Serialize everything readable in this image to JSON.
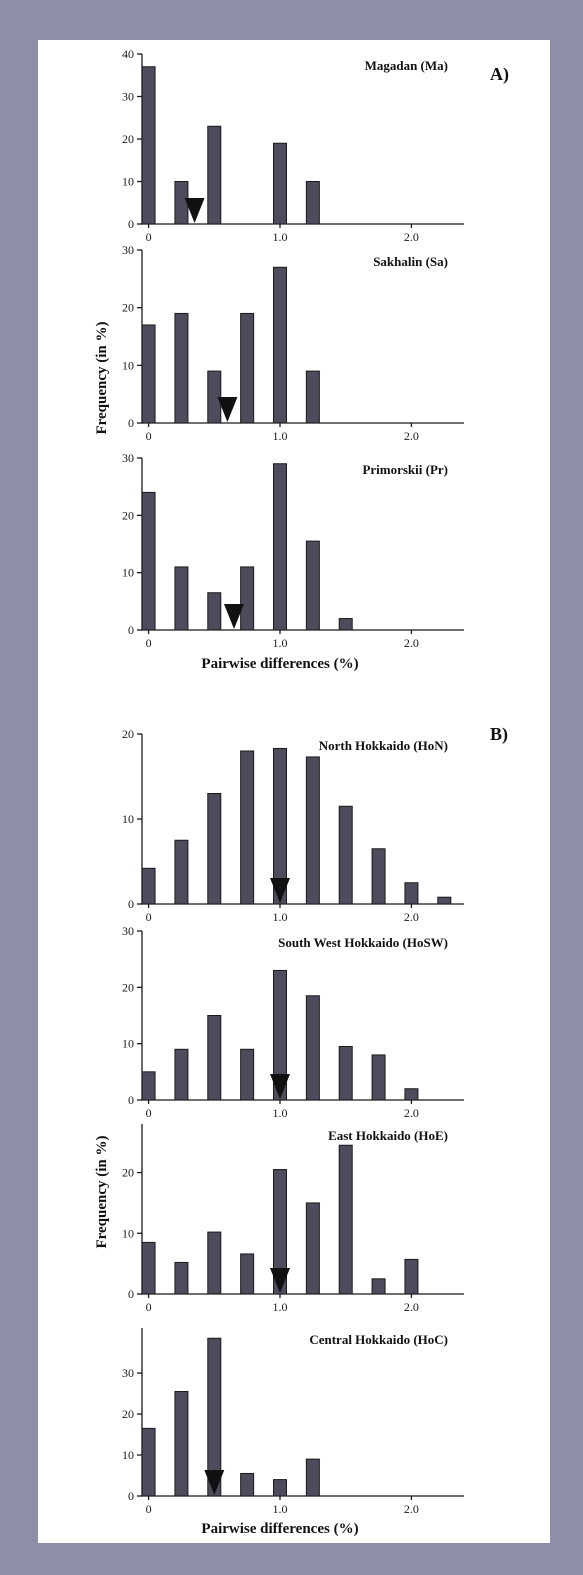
{
  "sections": [
    {
      "label": "A)",
      "ylabel": "Frequency (in %)",
      "xlabel": "Pairwise differences (%)"
    },
    {
      "label": "B)",
      "ylabel": "Frequency (in %)",
      "xlabel": "Pairwise differences (%)"
    }
  ],
  "colors": {
    "bar": "#4e4c5c",
    "frame": "#8f8ea8",
    "marker": "#111111"
  },
  "chart_data": [
    {
      "type": "bar",
      "title": "Magadan (Ma)",
      "x": [
        0,
        0.25,
        0.5,
        1.0,
        1.25
      ],
      "values": [
        37,
        10,
        23,
        19,
        10
      ],
      "mean_marker": 0.35,
      "xlim": [
        -0.05,
        2.4
      ],
      "ylim": [
        0,
        40
      ],
      "yticks": [
        "0",
        "10",
        "20",
        "30",
        "40"
      ],
      "xticks": [
        "0",
        "1.0",
        "2.0"
      ]
    },
    {
      "type": "bar",
      "title": "Sakhalin (Sa)",
      "x": [
        0,
        0.25,
        0.5,
        0.75,
        1.0,
        1.25
      ],
      "values": [
        17,
        19,
        9,
        19,
        27,
        9
      ],
      "mean_marker": 0.6,
      "xlim": [
        -0.05,
        2.4
      ],
      "ylim": [
        0,
        30
      ],
      "yticks": [
        "0",
        "10",
        "20",
        "30"
      ],
      "xticks": [
        "0",
        "1.0",
        "2.0"
      ]
    },
    {
      "type": "bar",
      "title": "Primorskii (Pr)",
      "x": [
        0,
        0.25,
        0.5,
        0.75,
        1.0,
        1.25,
        1.5
      ],
      "values": [
        24,
        11,
        6.5,
        11,
        29,
        15.5,
        2
      ],
      "mean_marker": 0.65,
      "xlim": [
        -0.05,
        2.4
      ],
      "ylim": [
        0,
        30
      ],
      "yticks": [
        "0",
        "10",
        "20",
        "30"
      ],
      "xticks": [
        "0",
        "1.0",
        "2.0"
      ]
    },
    {
      "type": "bar",
      "title": "North Hokkaido (HoN)",
      "x": [
        0,
        0.25,
        0.5,
        0.75,
        1.0,
        1.25,
        1.5,
        1.75,
        2.0,
        2.25
      ],
      "values": [
        4.2,
        7.5,
        13,
        18,
        18.3,
        17.3,
        11.5,
        6.5,
        2.5,
        0.8
      ],
      "mean_marker": 1.0,
      "xlim": [
        -0.05,
        2.4
      ],
      "ylim": [
        0,
        20
      ],
      "yticks": [
        "0",
        "10",
        "20"
      ],
      "xticks": [
        "0",
        "1.0",
        "2.0"
      ]
    },
    {
      "type": "bar",
      "title": "South West Hokkaido (HoSW)",
      "x": [
        0,
        0.25,
        0.5,
        0.75,
        1.0,
        1.25,
        1.5,
        1.75,
        2.0
      ],
      "values": [
        5,
        9,
        15,
        9,
        23,
        18.5,
        9.5,
        8,
        2
      ],
      "mean_marker": 1.0,
      "xlim": [
        -0.05,
        2.4
      ],
      "ylim": [
        0,
        30
      ],
      "yticks": [
        "0",
        "10",
        "20",
        "30"
      ],
      "xticks": [
        "0",
        "1.0",
        "2.0"
      ]
    },
    {
      "type": "bar",
      "title": "East Hokkaido (HoE)",
      "x": [
        0,
        0.25,
        0.5,
        0.75,
        1.0,
        1.25,
        1.5,
        1.75,
        2.0
      ],
      "values": [
        8.5,
        5.2,
        10.2,
        6.6,
        20.5,
        15,
        24.5,
        2.5,
        5.7
      ],
      "mean_marker": 1.0,
      "xlim": [
        -0.05,
        2.4
      ],
      "ylim": [
        0,
        28
      ],
      "yticks": [
        "0",
        "10",
        "20"
      ],
      "xticks": [
        "0",
        "1.0",
        "2.0"
      ]
    },
    {
      "type": "bar",
      "title": "Central Hokkaido (HoC)",
      "x": [
        0,
        0.25,
        0.5,
        0.75,
        1.0,
        1.25
      ],
      "values": [
        16.5,
        25.5,
        38.5,
        5.5,
        4,
        9
      ],
      "mean_marker": 0.5,
      "xlim": [
        -0.05,
        2.4
      ],
      "ylim": [
        0,
        41
      ],
      "yticks": [
        "0",
        "10",
        "20",
        "30"
      ],
      "xticks": [
        "0",
        "1.0",
        "2.0"
      ]
    }
  ]
}
